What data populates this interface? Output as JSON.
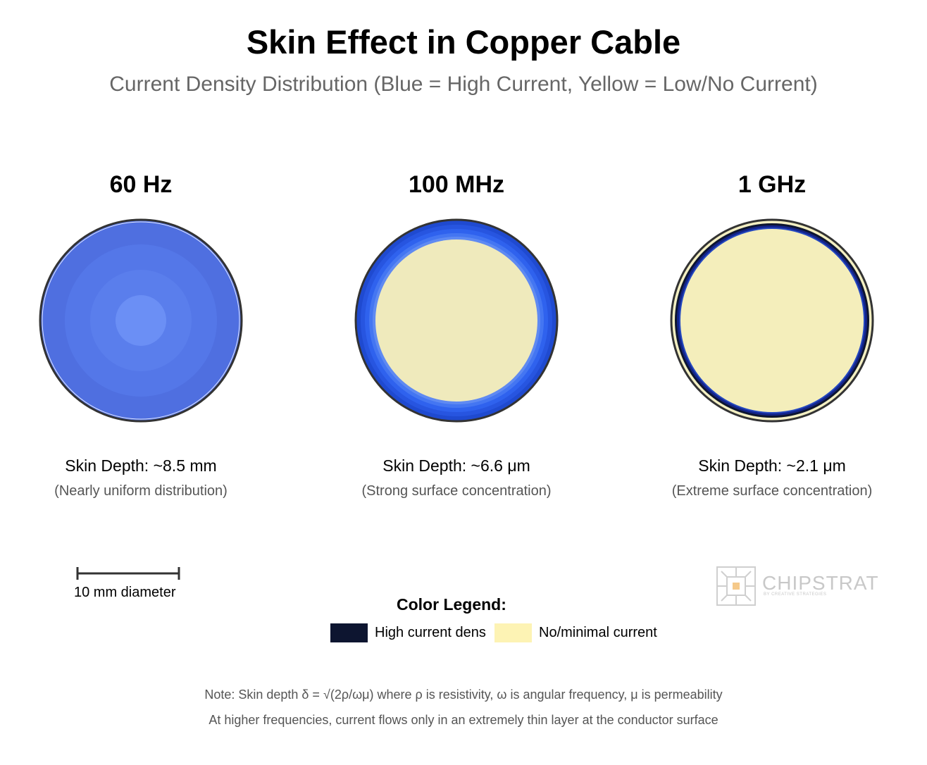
{
  "title": "Skin Effect in Copper Cable",
  "subtitle": "Current Density Distribution (Blue = High Current, Yellow = Low/No Current)",
  "panels": [
    {
      "frequency": "60 Hz",
      "skin_depth": "Skin Depth: ~8.5 mm",
      "description": "(Nearly uniform distribution)"
    },
    {
      "frequency": "100 MHz",
      "skin_depth": "Skin Depth: ~6.6 μm",
      "description": "(Strong surface concentration)"
    },
    {
      "frequency": "1 GHz",
      "skin_depth": "Skin Depth: ~2.1 μm",
      "description": "(Extreme surface concentration)"
    }
  ],
  "scale_bar": {
    "label": "10 mm diameter"
  },
  "legend": {
    "title": "Color Legend:",
    "items": [
      {
        "label": "High current dens",
        "color": "#0d1530"
      },
      {
        "label": "No/minimal current",
        "color": "#fdf3b4"
      }
    ]
  },
  "notes": [
    "Note: Skin depth δ = √(2ρ/ωμ) where ρ is resistivity, ω is angular frequency, μ is permeability",
    "At higher frequencies, current flows only in an extremely thin layer at the conductor surface"
  ],
  "logo": {
    "name": "CHIPSTRAT",
    "tagline": "BY CREATIVE STRATEGIES"
  },
  "colors": {
    "uniform_outer": "#4f6fe0",
    "uniform_mid": "#5477e8",
    "uniform_inner": "#5f85f0",
    "uniform_core": "#6b8ff5",
    "surface_blue": "#2f62ee",
    "deep_blue": "#13248a",
    "pale_yellow": "#efeabc",
    "outline": "#333333"
  }
}
